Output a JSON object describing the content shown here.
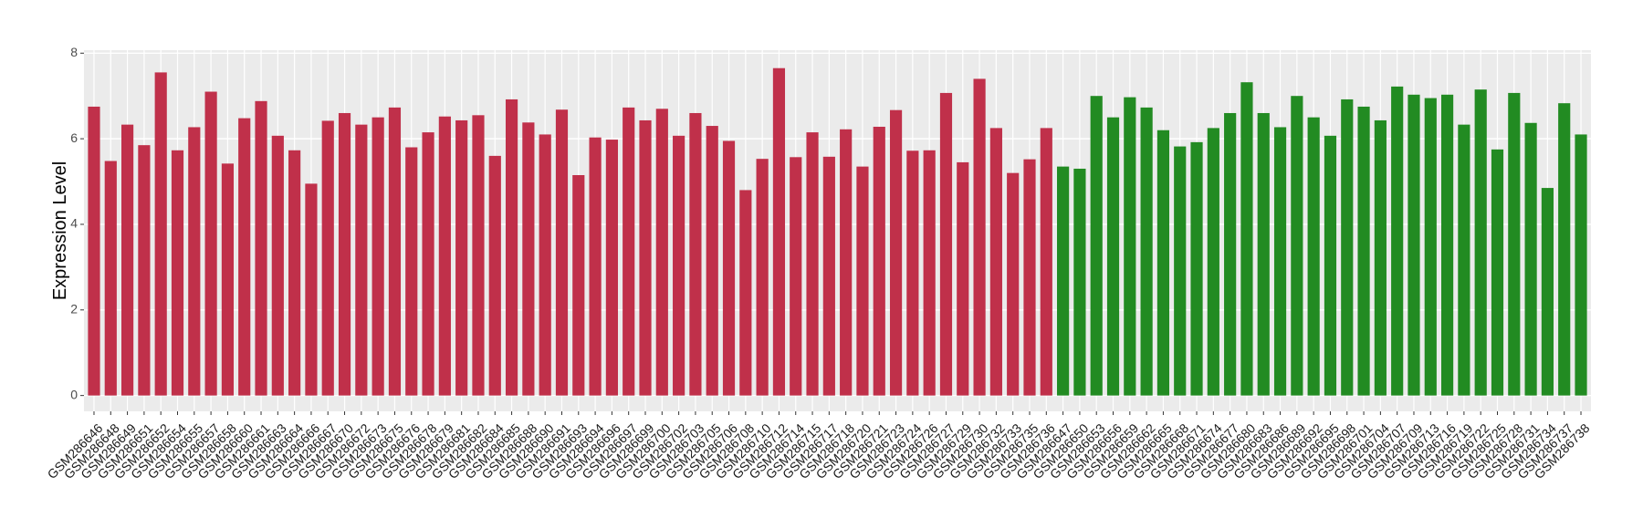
{
  "chart_data": {
    "type": "bar",
    "ylabel": "Expression Level",
    "categories": [
      "GSM286646",
      "GSM286648",
      "GSM286649",
      "GSM286651",
      "GSM286652",
      "GSM286654",
      "GSM286655",
      "GSM286657",
      "GSM286658",
      "GSM286660",
      "GSM286661",
      "GSM286663",
      "GSM286664",
      "GSM286666",
      "GSM286667",
      "GSM286670",
      "GSM286672",
      "GSM286673",
      "GSM286675",
      "GSM286676",
      "GSM286678",
      "GSM286679",
      "GSM286681",
      "GSM286682",
      "GSM286684",
      "GSM286685",
      "GSM286688",
      "GSM286690",
      "GSM286691",
      "GSM286693",
      "GSM286694",
      "GSM286696",
      "GSM286697",
      "GSM286699",
      "GSM286700",
      "GSM286702",
      "GSM286703",
      "GSM286705",
      "GSM286706",
      "GSM286708",
      "GSM286710",
      "GSM286712",
      "GSM286714",
      "GSM286715",
      "GSM286717",
      "GSM286718",
      "GSM286720",
      "GSM286721",
      "GSM286723",
      "GSM286724",
      "GSM286726",
      "GSM286727",
      "GSM286729",
      "GSM286730",
      "GSM286732",
      "GSM286733",
      "GSM286735",
      "GSM286736",
      "GSM286647",
      "GSM286650",
      "GSM286653",
      "GSM286656",
      "GSM286659",
      "GSM286662",
      "GSM286665",
      "GSM286668",
      "GSM286671",
      "GSM286674",
      "GSM286677",
      "GSM286680",
      "GSM286683",
      "GSM286686",
      "GSM286689",
      "GSM286692",
      "GSM286695",
      "GSM286698",
      "GSM286701",
      "GSM286704",
      "GSM286707",
      "GSM286709",
      "GSM286713",
      "GSM286716",
      "GSM286719",
      "GSM286722",
      "GSM286725",
      "GSM286728",
      "GSM286731",
      "GSM286734",
      "GSM286737",
      "GSM286738"
    ],
    "values": [
      6.75,
      5.48,
      6.33,
      5.85,
      7.55,
      5.73,
      6.27,
      7.1,
      5.42,
      6.48,
      6.88,
      6.07,
      5.73,
      4.95,
      6.42,
      6.6,
      6.33,
      6.5,
      6.73,
      5.8,
      6.15,
      6.52,
      6.43,
      6.55,
      5.6,
      6.92,
      6.38,
      6.1,
      6.68,
      5.15,
      6.03,
      5.98,
      6.73,
      6.43,
      6.7,
      6.07,
      6.6,
      6.3,
      5.95,
      4.8,
      5.53,
      7.65,
      5.57,
      6.15,
      5.58,
      6.22,
      5.35,
      6.28,
      6.67,
      5.72,
      5.73,
      7.07,
      5.45,
      7.4,
      6.25,
      5.2,
      5.52,
      6.25,
      5.35,
      5.3,
      7.0,
      6.5,
      6.97,
      6.73,
      6.2,
      5.82,
      5.92,
      6.25,
      6.6,
      7.32,
      6.6,
      6.27,
      7.0,
      6.5,
      6.07,
      6.92,
      6.75,
      6.43,
      7.22,
      7.03,
      6.95,
      7.03,
      6.33,
      7.15,
      5.75,
      7.07,
      6.37,
      4.85,
      6.83,
      6.1
    ],
    "colors": [
      "#c0304a",
      "#c0304a",
      "#c0304a",
      "#c0304a",
      "#c0304a",
      "#c0304a",
      "#c0304a",
      "#c0304a",
      "#c0304a",
      "#c0304a",
      "#c0304a",
      "#c0304a",
      "#c0304a",
      "#c0304a",
      "#c0304a",
      "#c0304a",
      "#c0304a",
      "#c0304a",
      "#c0304a",
      "#c0304a",
      "#c0304a",
      "#c0304a",
      "#c0304a",
      "#c0304a",
      "#c0304a",
      "#c0304a",
      "#c0304a",
      "#c0304a",
      "#c0304a",
      "#c0304a",
      "#c0304a",
      "#c0304a",
      "#c0304a",
      "#c0304a",
      "#c0304a",
      "#c0304a",
      "#c0304a",
      "#c0304a",
      "#c0304a",
      "#c0304a",
      "#c0304a",
      "#c0304a",
      "#c0304a",
      "#c0304a",
      "#c0304a",
      "#c0304a",
      "#c0304a",
      "#c0304a",
      "#c0304a",
      "#c0304a",
      "#c0304a",
      "#c0304a",
      "#c0304a",
      "#c0304a",
      "#c0304a",
      "#c0304a",
      "#c0304a",
      "#c0304a",
      "#228b22",
      "#228b22",
      "#228b22",
      "#228b22",
      "#228b22",
      "#228b22",
      "#228b22",
      "#228b22",
      "#228b22",
      "#228b22",
      "#228b22",
      "#228b22",
      "#228b22",
      "#228b22",
      "#228b22",
      "#228b22",
      "#228b22",
      "#228b22",
      "#228b22",
      "#228b22",
      "#228b22",
      "#228b22",
      "#228b22",
      "#228b22",
      "#228b22",
      "#228b22",
      "#228b22",
      "#228b22",
      "#228b22",
      "#228b22",
      "#228b22",
      "#228b22"
    ],
    "ylim": [
      -0.37,
      8.07
    ],
    "yticks": [
      0,
      2,
      4,
      6,
      8
    ],
    "grid": true
  }
}
